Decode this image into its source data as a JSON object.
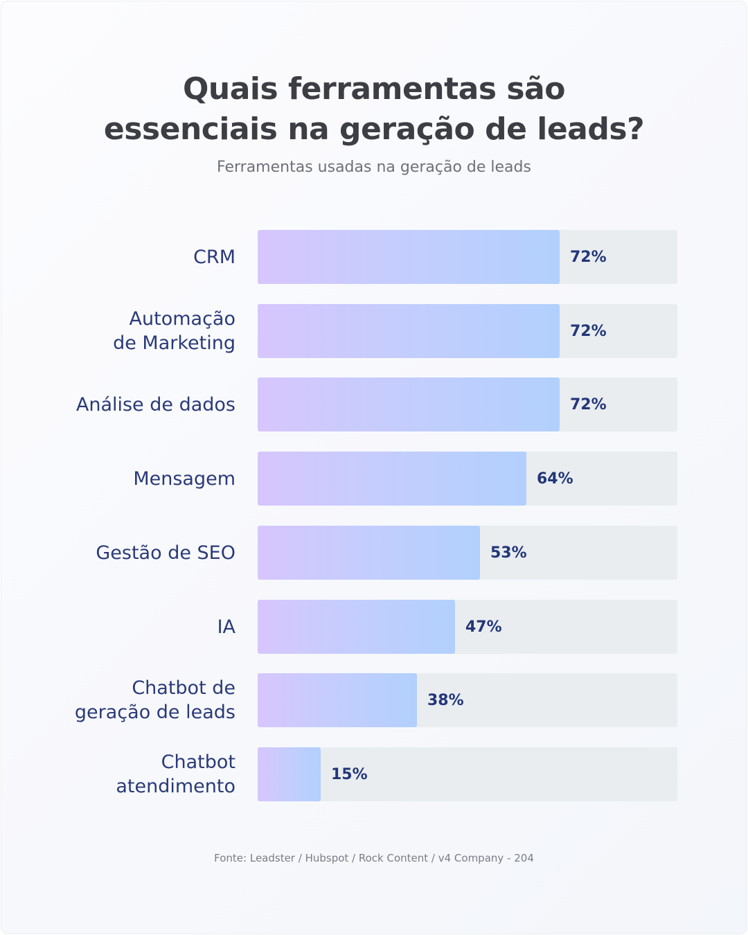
{
  "title_lines": [
    "Quais ferramentas são",
    "essenciais na geração de leads?"
  ],
  "subtitle": "Ferramentas usadas na geração de leads",
  "source": "Fonte: Leadster / Hubspot / Rock Content / v4 Company - 204",
  "colors": {
    "bar_start": "#d7c6fd",
    "bar_end": "#b2d0fd",
    "track": "#e9edf0",
    "label": "#2a3a78",
    "value": "#233778",
    "title": "#3c3e44"
  },
  "chart_data": {
    "type": "bar",
    "orientation": "horizontal",
    "title": "Quais ferramentas são essenciais na geração de leads?",
    "subtitle": "Ferramentas usadas na geração de leads",
    "categories": [
      "CRM",
      "Automação\nde Marketing",
      "Análise de dados",
      "Mensagem",
      "Gestão de SEO",
      "IA",
      "Chatbot de\ngeração de leads",
      "Chatbot\natendimento"
    ],
    "values": [
      72,
      72,
      72,
      64,
      53,
      47,
      38,
      15
    ],
    "value_labels": [
      "72%",
      "72%",
      "72%",
      "64%",
      "53%",
      "47%",
      "38%",
      "15%"
    ],
    "xlim": [
      0,
      100
    ],
    "unit": "%",
    "grid": false,
    "legend": "none"
  }
}
